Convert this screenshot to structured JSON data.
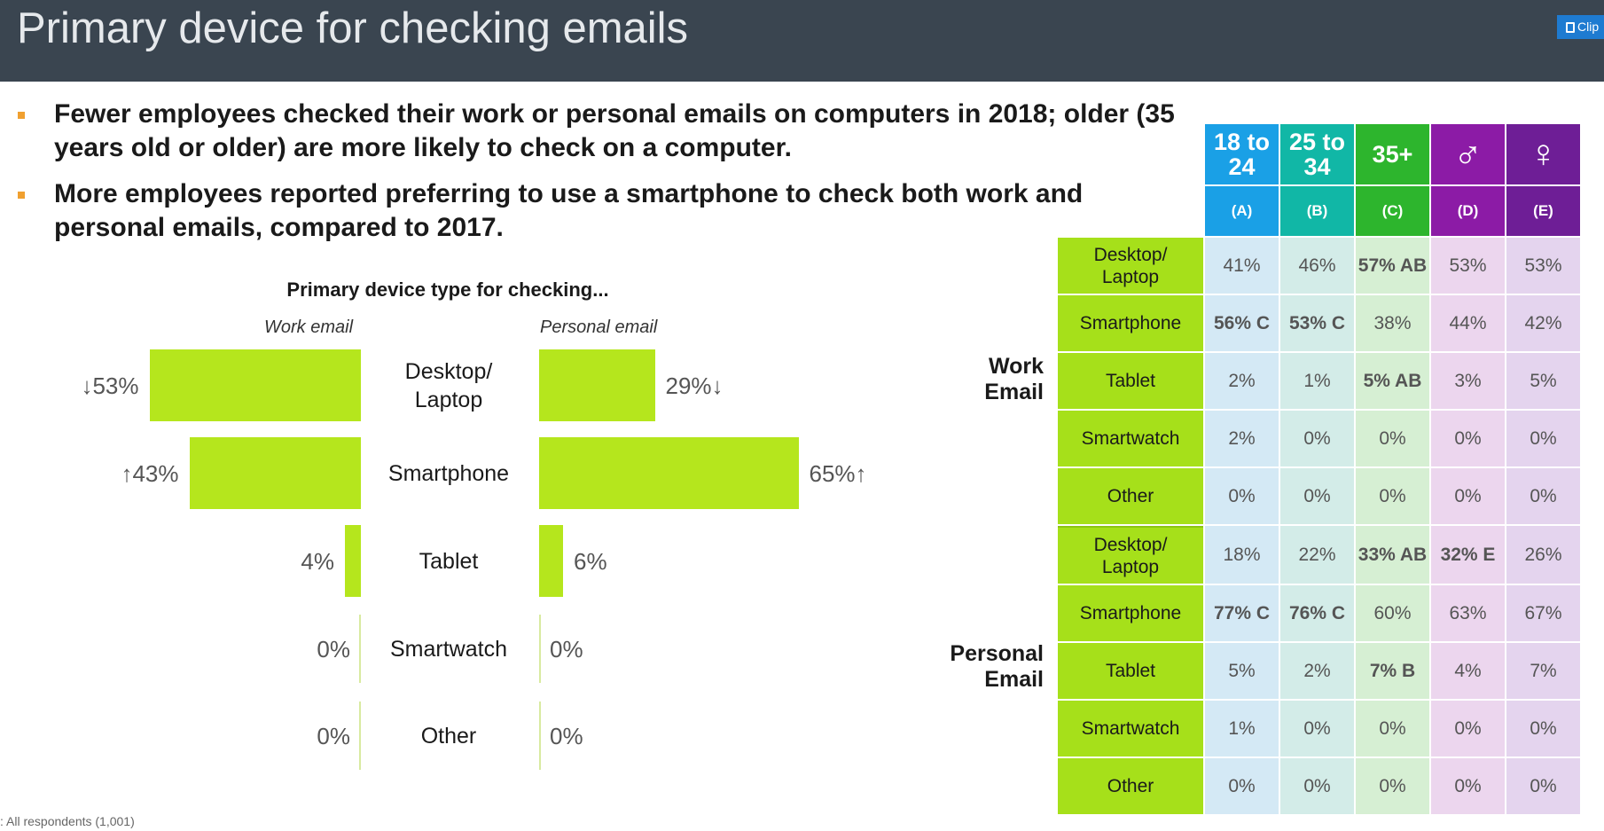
{
  "page": {
    "title": "Primary device for checking emails",
    "clip_label": "Clip",
    "footnote": ": All respondents (1,001)"
  },
  "bullets": [
    "Fewer employees checked their work or personal emails on computers in 2018; older (35 years old or older) are more likely to check on a computer.",
    "More employees reported preferring to use a smartphone to check both work and personal emails, compared to 2017."
  ],
  "chart_data": [
    {
      "type": "bar",
      "title": "Primary device type for checking...",
      "categories": [
        "Desktop/ Laptop",
        "Smartphone",
        "Tablet",
        "Smartwatch",
        "Other"
      ],
      "series": [
        {
          "name": "Work email",
          "values": [
            53,
            43,
            4,
            0,
            0
          ],
          "labels": [
            "↓53%",
            "↑43%",
            "4%",
            "0%",
            "0%"
          ]
        },
        {
          "name": "Personal email",
          "values": [
            29,
            65,
            6,
            0,
            0
          ],
          "labels": [
            "29%↓",
            "65%↑",
            "6%",
            "0%",
            "0%"
          ]
        }
      ],
      "bar_color": "#b5e61d"
    },
    {
      "type": "table",
      "columns": [
        {
          "label": "18 to 24",
          "code": "(A)",
          "color": "#1aa0e6",
          "tint": "#d4e9f5"
        },
        {
          "label": "25 to 34",
          "code": "(B)",
          "color": "#11b7a6",
          "tint": "#d3ece8"
        },
        {
          "label": "35+",
          "code": "(C)",
          "color": "#2db52d",
          "tint": "#d6efd3"
        },
        {
          "label": "♂",
          "code": "(D)",
          "color": "#8c1ba6",
          "tint": "#ecd6ee"
        },
        {
          "label": "♀",
          "code": "(E)",
          "color": "#6e1e96",
          "tint": "#e4d4ee"
        }
      ],
      "groups": [
        {
          "label": "Work Email",
          "rows": [
            {
              "label": "Desktop/ Laptop",
              "values": [
                "41%",
                "46%",
                "57% AB",
                "53%",
                "53%"
              ]
            },
            {
              "label": "Smartphone",
              "values": [
                "56% C",
                "53% C",
                "38%",
                "44%",
                "42%"
              ]
            },
            {
              "label": "Tablet",
              "values": [
                "2%",
                "1%",
                "5% AB",
                "3%",
                "5%"
              ]
            },
            {
              "label": "Smartwatch",
              "values": [
                "2%",
                "0%",
                "0%",
                "0%",
                "0%"
              ]
            },
            {
              "label": "Other",
              "values": [
                "0%",
                "0%",
                "0%",
                "0%",
                "0%"
              ]
            }
          ]
        },
        {
          "label": "Personal Email",
          "rows": [
            {
              "label": "Desktop/ Laptop",
              "values": [
                "18%",
                "22%",
                "33% AB",
                "32% E",
                "26%"
              ]
            },
            {
              "label": "Smartphone",
              "values": [
                "77% C",
                "76% C",
                "60%",
                "63%",
                "67%"
              ]
            },
            {
              "label": "Tablet",
              "values": [
                "5%",
                "2%",
                "7% B",
                "4%",
                "7%"
              ]
            },
            {
              "label": "Smartwatch",
              "values": [
                "1%",
                "0%",
                "0%",
                "0%",
                "0%"
              ]
            },
            {
              "label": "Other",
              "values": [
                "0%",
                "0%",
                "0%",
                "0%",
                "0%"
              ]
            }
          ]
        }
      ]
    }
  ]
}
